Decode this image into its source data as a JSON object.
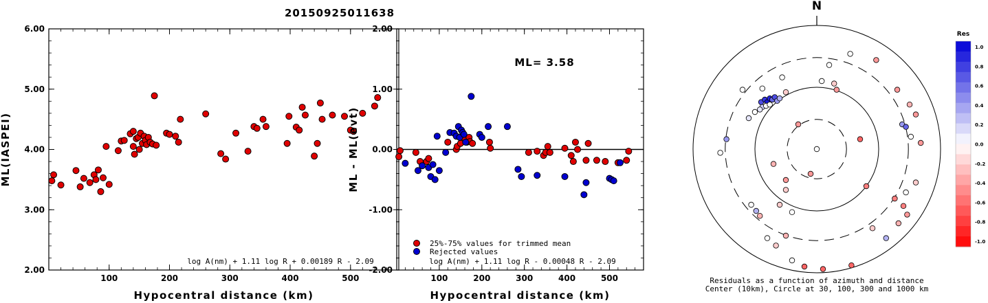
{
  "title": "20150925011638",
  "colors": {
    "red": "#e00000",
    "blue": "#0000d0",
    "axis": "#000000"
  },
  "chart_data": [
    {
      "type": "scatter",
      "xlabel": "Hypocentral distance (km)",
      "ylabel": "ML(IASPEI)",
      "xlim": [
        0,
        580
      ],
      "ylim": [
        2.0,
        6.0
      ],
      "xticks": [
        "100",
        "200",
        "300",
        "400",
        "500"
      ],
      "yticks": [
        "2.00",
        "3.00",
        "4.00",
        "5.00",
        "6.00"
      ],
      "annotation": "log A(nm) + 1.11 log R + 0.00189 R - 2.09",
      "points": [
        [
          5,
          3.48
        ],
        [
          8,
          3.58
        ],
        [
          20,
          3.41
        ],
        [
          45,
          3.65
        ],
        [
          52,
          3.38
        ],
        [
          58,
          3.52
        ],
        [
          68,
          3.45
        ],
        [
          75,
          3.58
        ],
        [
          78,
          3.5
        ],
        [
          82,
          3.66
        ],
        [
          86,
          3.3
        ],
        [
          90,
          3.53
        ],
        [
          95,
          4.05
        ],
        [
          100,
          3.42
        ],
        [
          115,
          3.98
        ],
        [
          120,
          4.14
        ],
        [
          125,
          4.15
        ],
        [
          135,
          4.26
        ],
        [
          140,
          4.3
        ],
        [
          140,
          4.05
        ],
        [
          142,
          3.92
        ],
        [
          145,
          4.18
        ],
        [
          148,
          4.2
        ],
        [
          150,
          4.0
        ],
        [
          152,
          4.27
        ],
        [
          155,
          4.1
        ],
        [
          158,
          4.22
        ],
        [
          160,
          4.15
        ],
        [
          162,
          4.08
        ],
        [
          165,
          4.2
        ],
        [
          168,
          4.12
        ],
        [
          172,
          4.09
        ],
        [
          175,
          4.89
        ],
        [
          178,
          4.07
        ],
        [
          195,
          4.27
        ],
        [
          200,
          4.25
        ],
        [
          210,
          4.22
        ],
        [
          215,
          4.12
        ],
        [
          218,
          4.5
        ],
        [
          260,
          4.59
        ],
        [
          285,
          3.93
        ],
        [
          293,
          3.84
        ],
        [
          310,
          4.27
        ],
        [
          330,
          3.97
        ],
        [
          340,
          4.38
        ],
        [
          345,
          4.35
        ],
        [
          355,
          4.5
        ],
        [
          360,
          4.38
        ],
        [
          395,
          4.1
        ],
        [
          398,
          4.55
        ],
        [
          410,
          4.37
        ],
        [
          415,
          4.32
        ],
        [
          420,
          4.7
        ],
        [
          425,
          4.57
        ],
        [
          440,
          3.89
        ],
        [
          445,
          4.1
        ],
        [
          450,
          4.77
        ],
        [
          453,
          4.5
        ],
        [
          470,
          4.57
        ],
        [
          490,
          4.55
        ],
        [
          500,
          4.32
        ],
        [
          505,
          4.3
        ],
        [
          520,
          4.6
        ],
        [
          540,
          4.72
        ],
        [
          545,
          4.86
        ]
      ]
    },
    {
      "type": "scatter",
      "xlabel": "Hypocentral distance (km)",
      "ylabel": "ML - ML(evt)",
      "xlim": [
        0,
        580
      ],
      "ylim": [
        -2.0,
        2.0
      ],
      "xticks": [
        "100",
        "200",
        "300",
        "400",
        "500"
      ],
      "yticks": [
        "-2.00",
        "-1.00",
        "0.00",
        "1.00",
        "2.00"
      ],
      "ml_label": "ML= 3.58",
      "annotation": "log A(nm) + 1.11 log R - 0.00048 R - 2.09",
      "legend": [
        "25%-75% values for trimmed mean",
        "Rejected values"
      ],
      "trimmed": [
        [
          5,
          -0.12
        ],
        [
          8,
          -0.02
        ],
        [
          45,
          -0.05
        ],
        [
          55,
          -0.2
        ],
        [
          70,
          -0.2
        ],
        [
          75,
          -0.15
        ],
        [
          120,
          0.12
        ],
        [
          140,
          0.0
        ],
        [
          142,
          0.05
        ],
        [
          150,
          0.1
        ],
        [
          160,
          0.18
        ],
        [
          165,
          0.12
        ],
        [
          170,
          0.2
        ],
        [
          172,
          0.13
        ],
        [
          178,
          0.1
        ],
        [
          218,
          0.12
        ],
        [
          220,
          0.02
        ],
        [
          310,
          -0.05
        ],
        [
          330,
          -0.03
        ],
        [
          345,
          -0.1
        ],
        [
          350,
          -0.05
        ],
        [
          355,
          0.05
        ],
        [
          360,
          -0.05
        ],
        [
          395,
          0.02
        ],
        [
          410,
          -0.1
        ],
        [
          415,
          -0.2
        ],
        [
          420,
          0.12
        ],
        [
          425,
          0.0
        ],
        [
          445,
          -0.18
        ],
        [
          450,
          0.1
        ],
        [
          470,
          -0.18
        ],
        [
          490,
          -0.2
        ],
        [
          520,
          -0.22
        ],
        [
          540,
          -0.18
        ],
        [
          545,
          -0.03
        ]
      ],
      "rejected": [
        [
          20,
          -0.23
        ],
        [
          50,
          -0.35
        ],
        [
          60,
          -0.27
        ],
        [
          75,
          -0.3
        ],
        [
          80,
          -0.45
        ],
        [
          85,
          -0.25
        ],
        [
          90,
          -0.5
        ],
        [
          95,
          0.22
        ],
        [
          100,
          -0.35
        ],
        [
          115,
          -0.05
        ],
        [
          125,
          0.28
        ],
        [
          135,
          0.27
        ],
        [
          140,
          0.22
        ],
        [
          145,
          0.38
        ],
        [
          148,
          0.2
        ],
        [
          152,
          0.32
        ],
        [
          155,
          0.28
        ],
        [
          158,
          0.25
        ],
        [
          162,
          0.12
        ],
        [
          175,
          0.88
        ],
        [
          195,
          0.25
        ],
        [
          200,
          0.2
        ],
        [
          215,
          0.38
        ],
        [
          260,
          0.38
        ],
        [
          285,
          -0.33
        ],
        [
          293,
          -0.45
        ],
        [
          330,
          -0.43
        ],
        [
          395,
          -0.45
        ],
        [
          440,
          -0.75
        ],
        [
          445,
          -0.55
        ],
        [
          500,
          -0.48
        ],
        [
          505,
          -0.5
        ],
        [
          510,
          -0.52
        ],
        [
          525,
          -0.22
        ]
      ]
    },
    {
      "type": "polar-scatter",
      "north_label": "N",
      "caption_line1": "Residuals as a function of azimuth and distance",
      "caption_line2": "Center (10km), Circle at 30, 100, 300 and 1000 km",
      "colorbar_title": "Res",
      "colorbar_ticks": [
        "1.0",
        "0.8",
        "0.6",
        "0.4",
        "0.2",
        "0.0",
        "-0.2",
        "-0.4",
        "-0.6",
        "-0.8",
        "-1.0"
      ],
      "points_rel": [
        [
          0,
          0,
          0
        ],
        [
          -0.45,
          0.38,
          0.7
        ],
        [
          -0.42,
          0.4,
          0.8
        ],
        [
          -0.4,
          0.38,
          0.9
        ],
        [
          -0.38,
          0.41,
          0.85
        ],
        [
          -0.36,
          0.4,
          0.6
        ],
        [
          -0.34,
          0.42,
          0.7
        ],
        [
          -0.32,
          0.39,
          0.4
        ],
        [
          -0.3,
          0.41,
          0.3
        ],
        [
          -0.44,
          0.34,
          0.2
        ],
        [
          -0.46,
          0.32,
          0.1
        ],
        [
          -0.41,
          0.35,
          0.0
        ],
        [
          -0.38,
          0.36,
          0.0
        ],
        [
          -0.5,
          0.3,
          0.0
        ],
        [
          -0.55,
          0.25,
          0.1
        ],
        [
          -0.6,
          0.48,
          0.0
        ],
        [
          -0.44,
          0.49,
          0.0
        ],
        [
          -0.28,
          0.58,
          0.0
        ],
        [
          -0.53,
          -0.45,
          0.0
        ],
        [
          -0.49,
          -0.5,
          0.3
        ],
        [
          -0.46,
          -0.54,
          -0.3
        ],
        [
          -0.78,
          -0.03,
          0.0
        ],
        [
          -0.73,
          0.08,
          0.4
        ],
        [
          0.65,
          0.48,
          -0.4
        ],
        [
          0.75,
          0.36,
          -0.3
        ],
        [
          0.8,
          0.28,
          -0.4
        ],
        [
          0.69,
          0.2,
          0.4
        ],
        [
          0.72,
          0.18,
          0.6
        ],
        [
          0.76,
          0.1,
          0.0
        ],
        [
          0.84,
          0.05,
          -0.4
        ],
        [
          0.8,
          -0.27,
          -0.2
        ],
        [
          0.72,
          -0.35,
          0.0
        ],
        [
          0.63,
          -0.4,
          -0.5
        ],
        [
          0.7,
          -0.46,
          -0.5
        ],
        [
          0.73,
          -0.53,
          -0.4
        ],
        [
          0.66,
          -0.6,
          -0.3
        ],
        [
          0.56,
          -0.72,
          0.3
        ],
        [
          0.45,
          -0.64,
          -0.2
        ],
        [
          0.4,
          -0.3,
          -0.5
        ],
        [
          0.35,
          0.08,
          -0.6
        ],
        [
          0.16,
          0.48,
          -0.4
        ],
        [
          0.27,
          0.77,
          0.0
        ],
        [
          0.48,
          0.72,
          -0.4
        ],
        [
          0.1,
          0.68,
          0.0
        ],
        [
          -0.15,
          0.2,
          -0.4
        ],
        [
          -0.05,
          -0.2,
          -0.4
        ],
        [
          -0.35,
          -0.12,
          -0.3
        ],
        [
          -0.25,
          -0.25,
          -0.4
        ],
        [
          -0.25,
          -0.33,
          -0.2
        ],
        [
          -0.3,
          -0.45,
          -0.2
        ],
        [
          -0.2,
          -0.51,
          0.0
        ],
        [
          -0.4,
          -0.72,
          0.0
        ],
        [
          -0.33,
          -0.78,
          -0.2
        ],
        [
          -0.2,
          -0.9,
          0.0
        ],
        [
          -0.1,
          -0.95,
          -0.6
        ],
        [
          0.05,
          -0.97,
          -0.6
        ],
        [
          0.28,
          -0.94,
          -0.6
        ],
        [
          -0.25,
          -0.7,
          -0.3
        ],
        [
          0.04,
          0.55,
          0.0
        ],
        [
          0.14,
          0.53,
          -0.2
        ],
        [
          -0.25,
          0.46,
          -0.2
        ]
      ]
    }
  ]
}
